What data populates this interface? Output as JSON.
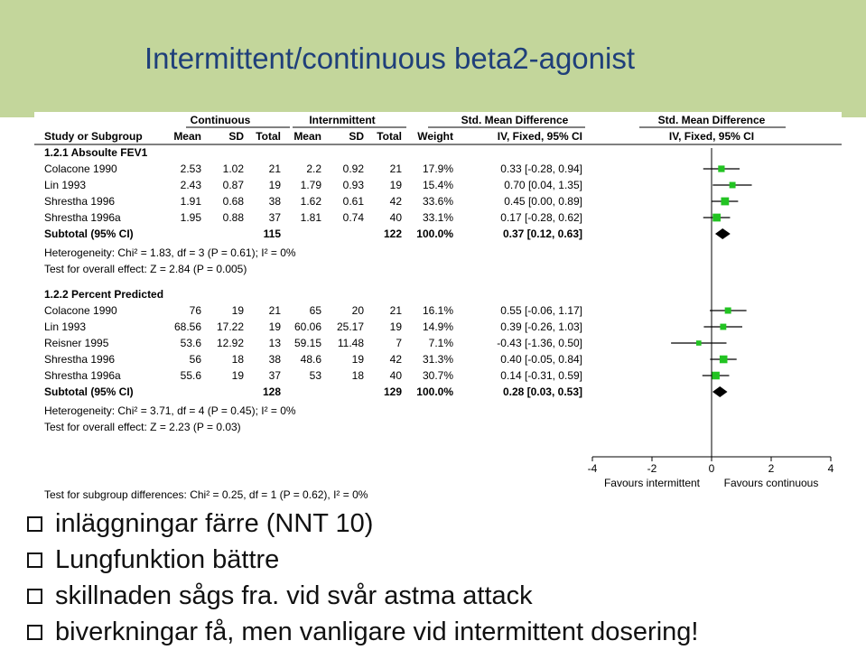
{
  "slide_title": "Intermittent/continuous beta2-agonist",
  "accent_color": "#c3d69b",
  "marker_color": "#22c322",
  "chart_data": {
    "type": "forest",
    "header": {
      "group_continuous": "Continuous",
      "group_intermittent": "Internmittent",
      "group_smd": "Std. Mean Difference",
      "group_smd_plot": "Std. Mean Difference",
      "col_study": "Study or Subgroup",
      "col_mean1": "Mean",
      "col_sd1": "SD",
      "col_total1": "Total",
      "col_mean2": "Mean",
      "col_sd2": "SD",
      "col_total2": "Total",
      "col_weight": "Weight",
      "col_ci": "IV, Fixed, 95% CI",
      "col_ci_plot": "IV, Fixed, 95% CI"
    },
    "subgroups": [
      {
        "title": "1.2.1 Absoulte FEV1",
        "studies": [
          {
            "study": "Colacone 1990",
            "mean1": "2.53",
            "sd1": "1.02",
            "total1": "21",
            "mean2": "2.2",
            "sd2": "0.92",
            "total2": "21",
            "weight": "17.9%",
            "ci": "0.33 [-0.28, 0.94]",
            "est": 0.33,
            "lo": -0.28,
            "hi": 0.94,
            "w": 17.9
          },
          {
            "study": "Lin 1993",
            "mean1": "2.43",
            "sd1": "0.87",
            "total1": "19",
            "mean2": "1.79",
            "sd2": "0.93",
            "total2": "19",
            "weight": "15.4%",
            "ci": "0.70 [0.04, 1.35]",
            "est": 0.7,
            "lo": 0.04,
            "hi": 1.35,
            "w": 15.4
          },
          {
            "study": "Shrestha 1996",
            "mean1": "1.91",
            "sd1": "0.68",
            "total1": "38",
            "mean2": "1.62",
            "sd2": "0.61",
            "total2": "42",
            "weight": "33.6%",
            "ci": "0.45 [0.00, 0.89]",
            "est": 0.45,
            "lo": 0.0,
            "hi": 0.89,
            "w": 33.6
          },
          {
            "study": "Shrestha 1996a",
            "mean1": "1.95",
            "sd1": "0.88",
            "total1": "37",
            "mean2": "1.81",
            "sd2": "0.74",
            "total2": "40",
            "weight": "33.1%",
            "ci": "0.17 [-0.28, 0.62]",
            "est": 0.17,
            "lo": -0.28,
            "hi": 0.62,
            "w": 33.1
          }
        ],
        "subtotal": {
          "label": "Subtotal (95% CI)",
          "total1": "115",
          "total2": "122",
          "weight": "100.0%",
          "ci": "0.37 [0.12, 0.63]",
          "est": 0.37,
          "lo": 0.12,
          "hi": 0.63
        },
        "heterogeneity": "Heterogeneity: Chi² = 1.83, df = 3 (P = 0.61); I² = 0%",
        "overall": "Test for overall effect: Z = 2.84 (P = 0.005)"
      },
      {
        "title": "1.2.2 Percent Predicted",
        "studies": [
          {
            "study": "Colacone 1990",
            "mean1": "76",
            "sd1": "19",
            "total1": "21",
            "mean2": "65",
            "sd2": "20",
            "total2": "21",
            "weight": "16.1%",
            "ci": "0.55 [-0.06, 1.17]",
            "est": 0.55,
            "lo": -0.06,
            "hi": 1.17,
            "w": 16.1
          },
          {
            "study": "Lin 1993",
            "mean1": "68.56",
            "sd1": "17.22",
            "total1": "19",
            "mean2": "60.06",
            "sd2": "25.17",
            "total2": "19",
            "weight": "14.9%",
            "ci": "0.39 [-0.26, 1.03]",
            "est": 0.39,
            "lo": -0.26,
            "hi": 1.03,
            "w": 14.9
          },
          {
            "study": "Reisner 1995",
            "mean1": "53.6",
            "sd1": "12.92",
            "total1": "13",
            "mean2": "59.15",
            "sd2": "11.48",
            "total2": "7",
            "weight": "7.1%",
            "ci": "-0.43 [-1.36, 0.50]",
            "est": -0.43,
            "lo": -1.36,
            "hi": 0.5,
            "w": 7.1
          },
          {
            "study": "Shrestha 1996",
            "mean1": "56",
            "sd1": "18",
            "total1": "38",
            "mean2": "48.6",
            "sd2": "19",
            "total2": "42",
            "weight": "31.3%",
            "ci": "0.40 [-0.05, 0.84]",
            "est": 0.4,
            "lo": -0.05,
            "hi": 0.84,
            "w": 31.3
          },
          {
            "study": "Shrestha 1996a",
            "mean1": "55.6",
            "sd1": "19",
            "total1": "37",
            "mean2": "53",
            "sd2": "18",
            "total2": "40",
            "weight": "30.7%",
            "ci": "0.14 [-0.31, 0.59]",
            "est": 0.14,
            "lo": -0.31,
            "hi": 0.59,
            "w": 30.7
          }
        ],
        "subtotal": {
          "label": "Subtotal (95% CI)",
          "total1": "128",
          "total2": "129",
          "weight": "100.0%",
          "ci": "0.28 [0.03, 0.53]",
          "est": 0.28,
          "lo": 0.03,
          "hi": 0.53
        },
        "heterogeneity": "Heterogeneity: Chi² = 3.71, df = 4 (P = 0.45); I² = 0%",
        "overall": "Test for overall effect: Z = 2.23 (P = 0.03)"
      }
    ],
    "subgroup_test": "Test for subgroup differences: Chi² = 0.25, df = 1 (P = 0.62), I² = 0%",
    "xlim": [
      -4,
      4
    ],
    "xticks": [
      "-4",
      "-2",
      "0",
      "2",
      "4"
    ],
    "favours_left": "Favours intermittent",
    "favours_right": "Favours continuous"
  },
  "bullets": [
    "inläggningar färre (NNT 10)",
    "Lungfunktion bättre",
    "skillnaden sågs fra. vid  svår astma attack",
    "biverkningar få, men vanligare vid intermittent dosering!"
  ]
}
